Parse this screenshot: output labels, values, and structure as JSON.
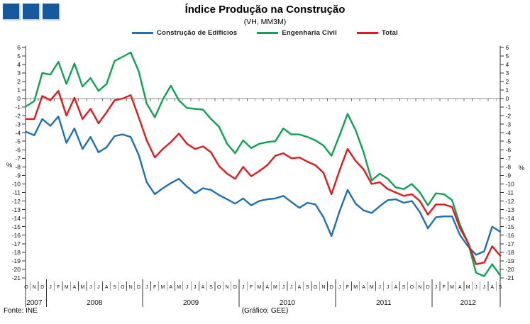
{
  "header": {
    "title": "Índice Produção na Construção",
    "subtitle": "(VH, MM3M)"
  },
  "legend": {
    "items": [
      {
        "label": "Construção de Edifícios",
        "color": "#1F6FB5"
      },
      {
        "label": "Engenharia Civil",
        "color": "#10A152"
      },
      {
        "label": "Total",
        "color": "#E01A1D"
      }
    ]
  },
  "footer": {
    "source": "Fonte:  INE",
    "credit": "(Gráfico:  GEE)"
  },
  "chart_data": {
    "type": "line",
    "title": "Índice Produção na Construção",
    "subtitle": "(VH, MM3M)",
    "unit": "%",
    "ylim": [
      -21,
      6
    ],
    "ytick_step": 1,
    "grid": "zero-line-only",
    "legend_position": "top",
    "x_categories": [
      "O",
      "N",
      "D",
      "J",
      "F",
      "M",
      "A",
      "M",
      "J",
      "J",
      "A",
      "S",
      "O",
      "N",
      "D",
      "J",
      "F",
      "M",
      "A",
      "M",
      "J",
      "J",
      "A",
      "S",
      "O",
      "N",
      "D",
      "J",
      "F",
      "M",
      "A",
      "M",
      "J",
      "J",
      "A",
      "S",
      "O",
      "N",
      "D",
      "J",
      "F",
      "M",
      "A",
      "M",
      "J",
      "J",
      "A",
      "S",
      "O",
      "N",
      "D",
      "J",
      "F",
      "M",
      "A",
      "M",
      "J",
      "J",
      "A",
      "S"
    ],
    "x_years": [
      {
        "label": "2007",
        "months": 3
      },
      {
        "label": "2008",
        "months": 12
      },
      {
        "label": "2009",
        "months": 12
      },
      {
        "label": "2010",
        "months": 12
      },
      {
        "label": "2011",
        "months": 12
      },
      {
        "label": "2012",
        "months": 9
      }
    ],
    "series": [
      {
        "name": "Construção de Edifícios",
        "color": "#1F6FB5",
        "values": [
          -3.9,
          -4.3,
          -2.4,
          -3.2,
          -2.1,
          -5.2,
          -3.5,
          -5.9,
          -4.5,
          -6.3,
          -5.7,
          -4.4,
          -4.2,
          -4.5,
          -6.6,
          -9.8,
          -11.2,
          -10.5,
          -9.9,
          -9.4,
          -10.3,
          -11.1,
          -10.5,
          -10.7,
          -11.3,
          -11.8,
          -12.3,
          -11.7,
          -12.5,
          -12.0,
          -11.8,
          -11.7,
          -11.4,
          -12.1,
          -12.8,
          -12.2,
          -12.4,
          -13.9,
          -16.1,
          -13.2,
          -10.7,
          -12.3,
          -13.1,
          -13.4,
          -12.6,
          -11.9,
          -11.8,
          -12.2,
          -12.0,
          -13.3,
          -15.2,
          -13.9,
          -13.8,
          -13.8,
          -16.0,
          -17.3,
          -18.3,
          -17.9,
          -15.0,
          -15.6
        ]
      },
      {
        "name": "Engenharia Civil",
        "color": "#10A152",
        "values": [
          -0.9,
          -0.3,
          3.0,
          2.8,
          4.3,
          1.7,
          4.1,
          1.4,
          2.4,
          0.9,
          1.7,
          4.4,
          4.9,
          5.4,
          3.2,
          -0.6,
          -2.2,
          -0.1,
          1.5,
          -0.2,
          -1.1,
          -1.2,
          -1.3,
          -2.4,
          -3.3,
          -5.3,
          -6.4,
          -4.9,
          -5.8,
          -5.3,
          -5.1,
          -5.0,
          -3.5,
          -4.2,
          -4.2,
          -4.5,
          -4.9,
          -5.5,
          -6.7,
          -4.3,
          -1.8,
          -3.7,
          -6.3,
          -9.6,
          -8.8,
          -9.4,
          -10.4,
          -10.6,
          -10.0,
          -11.0,
          -12.5,
          -11.1,
          -11.2,
          -11.9,
          -14.8,
          -16.9,
          -20.4,
          -20.8,
          -19.4,
          -20.7
        ]
      },
      {
        "name": "Total",
        "color": "#E01A1D",
        "values": [
          -2.4,
          -2.4,
          0.3,
          -0.2,
          0.9,
          -2.0,
          0.1,
          -2.4,
          -1.2,
          -2.9,
          -1.6,
          -0.2,
          0.0,
          0.4,
          -2.2,
          -4.9,
          -6.9,
          -5.9,
          -5.1,
          -4.1,
          -5.3,
          -5.9,
          -5.6,
          -6.3,
          -7.9,
          -8.8,
          -9.4,
          -8.0,
          -9.1,
          -8.5,
          -7.8,
          -6.7,
          -6.4,
          -7.0,
          -6.9,
          -7.4,
          -7.8,
          -8.7,
          -11.2,
          -8.4,
          -5.9,
          -7.3,
          -8.3,
          -10.0,
          -9.8,
          -10.6,
          -11.0,
          -11.4,
          -11.2,
          -12.0,
          -13.6,
          -12.4,
          -12.4,
          -12.7,
          -15.2,
          -16.9,
          -19.4,
          -19.2,
          -17.3,
          -18.4
        ]
      }
    ],
    "axis_color": "#333333",
    "zero_line_color": "#8C8C8C"
  }
}
